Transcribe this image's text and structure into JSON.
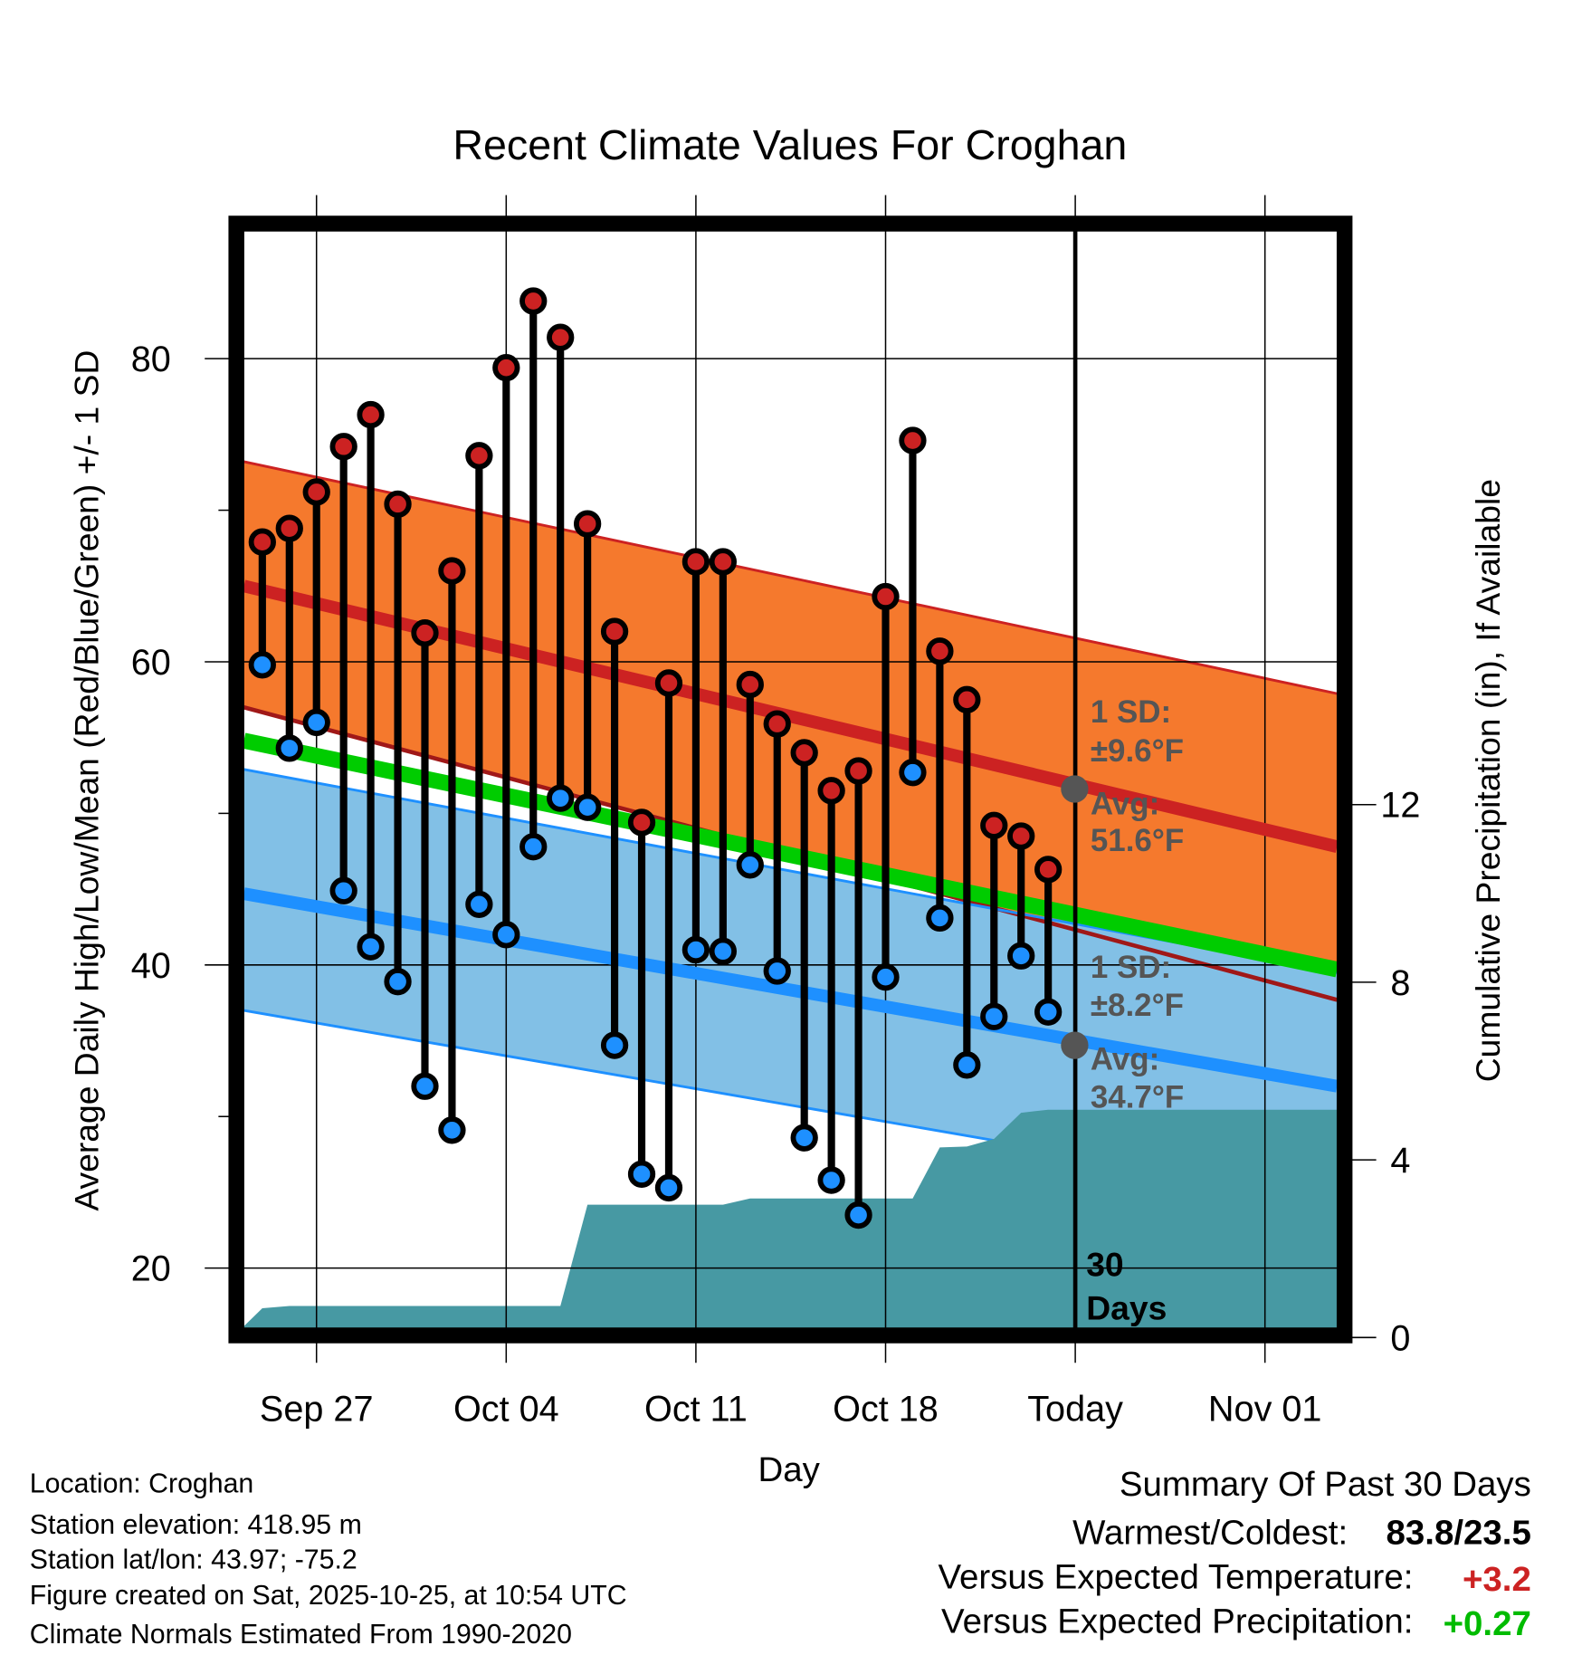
{
  "chart_data": {
    "type": "line",
    "title": "Recent Climate Values For Croghan",
    "xlabel": "Day",
    "ylabel": "Average Daily High/Low/Mean (Red/Blue/Green) +/- 1 SD",
    "y2label": "Cumulative Precipitation (in), If Available",
    "ylim": [
      15.6,
      88.9
    ],
    "y2lim": [
      0,
      24
    ],
    "yticks": [
      20,
      40,
      60,
      80
    ],
    "y2ticks": [
      0,
      4,
      8,
      12
    ],
    "xticks": [
      {
        "day": 2,
        "label": "Sep 27"
      },
      {
        "day": 9,
        "label": "Oct 04"
      },
      {
        "day": 16,
        "label": "Oct 11"
      },
      {
        "day": 23,
        "label": "Oct 18"
      },
      {
        "day": 30,
        "label": "Today"
      },
      {
        "day": 37,
        "label": "Nov 01"
      }
    ],
    "x_note": "day 0 = Sep 25",
    "days": [
      "Sep 25",
      "Sep 26",
      "Sep 27",
      "Sep 28",
      "Sep 29",
      "Sep 30",
      "Oct 01",
      "Oct 02",
      "Oct 03",
      "Oct 04",
      "Oct 05",
      "Oct 06",
      "Oct 07",
      "Oct 08",
      "Oct 09",
      "Oct 10",
      "Oct 11",
      "Oct 12",
      "Oct 13",
      "Oct 14",
      "Oct 15",
      "Oct 16",
      "Oct 17",
      "Oct 18",
      "Oct 19",
      "Oct 20",
      "Oct 21",
      "Oct 22",
      "Oct 23",
      "Oct 24"
    ],
    "series": [
      {
        "name": "Daily High",
        "color": "#cc2222",
        "values": [
          67.9,
          68.8,
          71.2,
          74.2,
          76.3,
          70.4,
          61.9,
          66.0,
          73.6,
          79.4,
          83.8,
          81.4,
          69.1,
          62.0,
          49.4,
          58.6,
          66.6,
          66.6,
          58.5,
          55.9,
          54.0,
          51.5,
          52.8,
          64.3,
          74.6,
          60.7,
          57.5,
          49.2,
          48.5,
          46.3
        ]
      },
      {
        "name": "Daily Low",
        "color": "#1e90ff",
        "values": [
          59.8,
          54.3,
          56.0,
          44.9,
          41.2,
          38.9,
          32.0,
          29.1,
          44.0,
          42.0,
          47.8,
          51.0,
          50.4,
          34.7,
          26.2,
          25.3,
          41.0,
          40.9,
          46.6,
          39.6,
          28.6,
          25.8,
          23.5,
          39.2,
          52.7,
          43.1,
          33.4,
          36.6,
          40.6,
          36.9
        ]
      },
      {
        "name": "Cumulative Precipitation",
        "color": "#4799a3",
        "values": [
          0.66,
          0.71,
          0.71,
          0.71,
          0.71,
          0.71,
          0.71,
          0.71,
          0.71,
          0.71,
          0.71,
          0.71,
          2.99,
          2.99,
          2.99,
          2.99,
          2.99,
          2.99,
          3.13,
          3.13,
          3.13,
          3.13,
          3.13,
          3.13,
          3.13,
          4.28,
          4.3,
          4.47,
          5.06,
          5.13
        ]
      }
    ],
    "normals": {
      "range_days": [
        -0.68,
        39.66
      ],
      "avg_high": [
        65.0,
        47.8
      ],
      "high_sd_upper": [
        73.2,
        57.9
      ],
      "high_sd_lower": [
        57.0,
        37.7
      ],
      "avg_mean": [
        54.8,
        39.7
      ],
      "avg_low": [
        44.7,
        32.0
      ],
      "low_sd_upper": [
        52.9,
        39.5
      ],
      "low_sd_lower": [
        37.0,
        24.5
      ]
    },
    "colors": {
      "high_band": "#f5792d",
      "high_line": "#cc2222",
      "low_band": "#82c0e6",
      "low_line": "#1e90ff",
      "mean_line": "#00cc00",
      "precip": "#4799a3"
    },
    "annotations": {
      "high_sd_label": "1 SD:",
      "high_sd_value": "±9.6°F",
      "high_avg_label": "Avg:",
      "high_avg_value": "51.6°F",
      "low_sd_label": "1 SD:",
      "low_sd_value": "±8.2°F",
      "low_avg_label": "Avg:",
      "low_avg_value": "34.7°F",
      "period_number": "30",
      "period_unit": "Days"
    }
  },
  "footer_left": [
    "Location: Croghan",
    "Station elevation: 418.95 m",
    "Station lat/lon: 43.97; -75.2",
    "Figure created on Sat, 2025-10-25, at 10:54 UTC",
    "Climate Normals Estimated From 1990-2020"
  ],
  "summary": {
    "title": "Summary Of Past 30 Days",
    "warmest_coldest_label": "Warmest/Coldest:",
    "warmest_coldest_value": "83.8/23.5",
    "temp_label": "Versus Expected Temperature:",
    "temp_value": "+3.2",
    "temp_color": "#cc2222",
    "precip_label": "Versus Expected Precipitation:",
    "precip_value": "+0.27",
    "precip_color": "#00bb00"
  }
}
